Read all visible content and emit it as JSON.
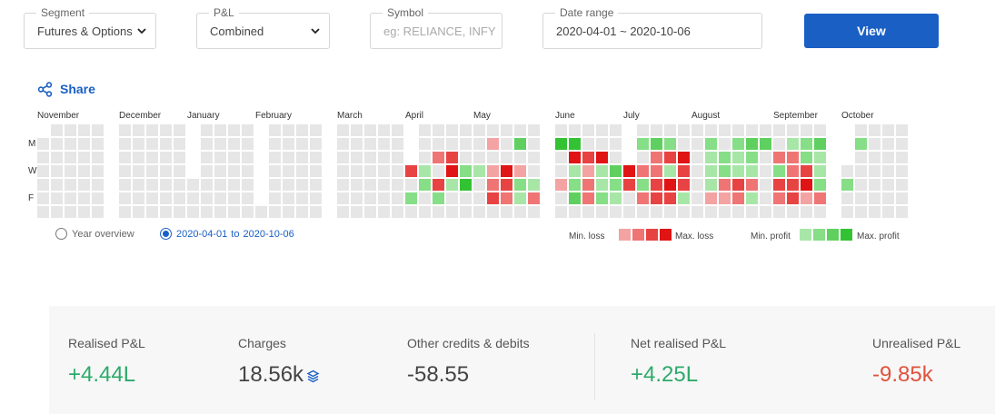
{
  "filters": {
    "segment": {
      "legend": "Segment",
      "value": "Futures & Options"
    },
    "pl": {
      "legend": "P&L",
      "value": "Combined"
    },
    "symbol": {
      "legend": "Symbol",
      "placeholder": "eg: RELIANCE, INFY"
    },
    "date_range": {
      "legend": "Date range",
      "value": "2020-04-01 ~ 2020-10-06"
    },
    "view_label": "View"
  },
  "share_label": "Share",
  "heatmap": {
    "months": [
      "November",
      "December",
      "January",
      "February",
      "March",
      "April",
      "May",
      "June",
      "July",
      "August",
      "September",
      "October"
    ],
    "weekday_labels": [
      "M",
      "W",
      "F"
    ],
    "colors": {
      "empty": "#e6e6e6",
      "loss": [
        "#f4a3a3",
        "#ef7575",
        "#e84343",
        "#e01414"
      ],
      "profit": [
        "#a8e6a8",
        "#86de86",
        "#5fd05f",
        "#33c233"
      ]
    }
  },
  "view_toggle": {
    "year_overview": "Year overview",
    "range_from": "2020-04-01",
    "range_to_word": "to",
    "range_to": "2020-10-06"
  },
  "scale": {
    "min_loss": "Min. loss",
    "max_loss": "Max. loss",
    "min_profit": "Min. profit",
    "max_profit": "Max. profit"
  },
  "summary": {
    "realised": {
      "label": "Realised P&L",
      "value": "+4.44L"
    },
    "charges": {
      "label": "Charges",
      "value": "18.56k"
    },
    "other": {
      "label": "Other credits & debits",
      "value": "-58.55"
    },
    "net": {
      "label": "Net realised P&L",
      "value": "+4.25L"
    },
    "unrealised": {
      "label": "Unrealised P&L",
      "value": "-9.85k"
    }
  }
}
